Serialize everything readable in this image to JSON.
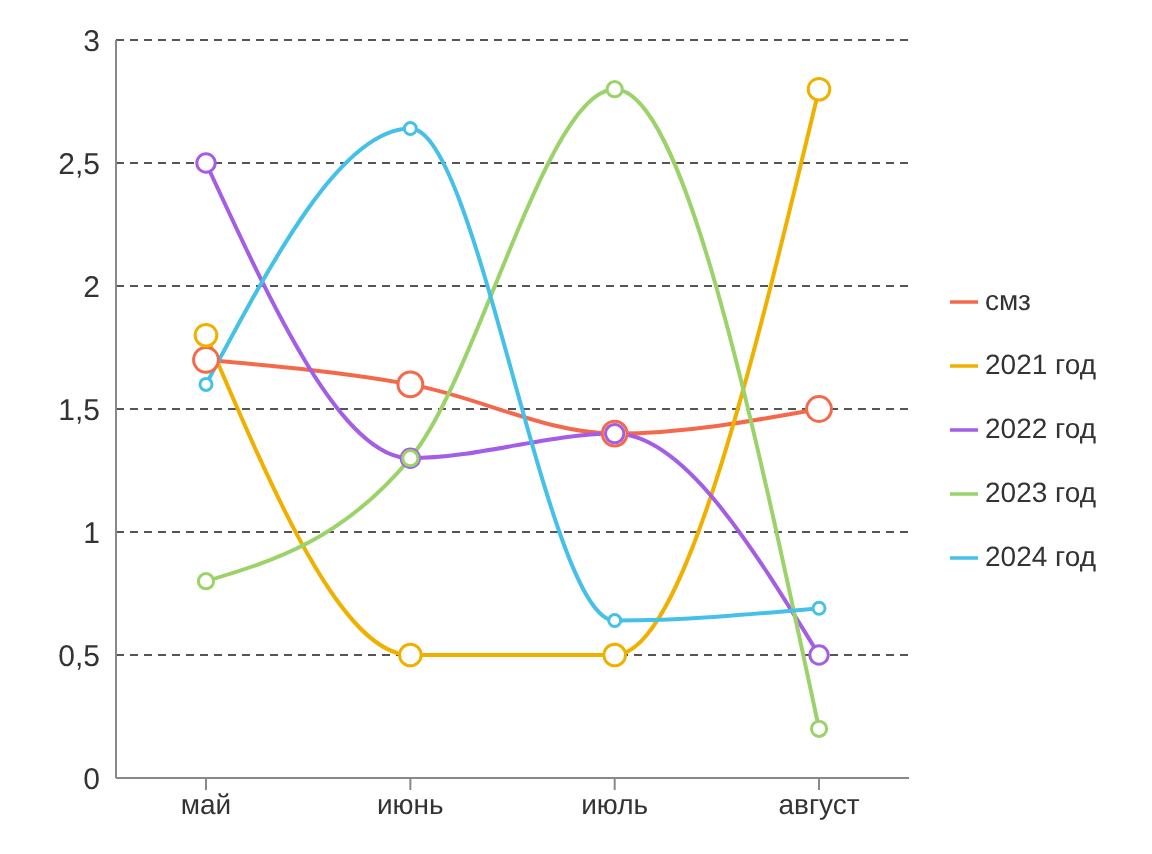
{
  "chart_data": {
    "type": "line",
    "categories": [
      "май",
      "июнь",
      "июль",
      "август"
    ],
    "series": [
      {
        "name": "смз",
        "color": "#f4694a",
        "values": [
          1.7,
          1.6,
          1.4,
          1.5
        ]
      },
      {
        "name": "2021 год",
        "color": "#f0b000",
        "values": [
          1.8,
          0.5,
          0.5,
          2.8
        ]
      },
      {
        "name": "2022 год",
        "color": "#a45ee5",
        "values": [
          2.5,
          1.3,
          1.4,
          0.5
        ]
      },
      {
        "name": "2023 год",
        "color": "#9bd36a",
        "values": [
          0.8,
          1.3,
          2.8,
          0.2
        ]
      },
      {
        "name": "2024 год",
        "color": "#45c0e8",
        "values": [
          1.6,
          2.64,
          0.64,
          0.69
        ]
      }
    ],
    "ylim": [
      0,
      3
    ],
    "yticks": [
      0,
      {
        "value": 0.5,
        "label": "0,5"
      },
      1,
      {
        "value": 1.5,
        "label": "1,5"
      },
      2,
      {
        "value": 2.5,
        "label": "2,5"
      },
      3
    ],
    "grid": "y",
    "legend": "right",
    "marker": "circle",
    "line_style": "solid"
  }
}
